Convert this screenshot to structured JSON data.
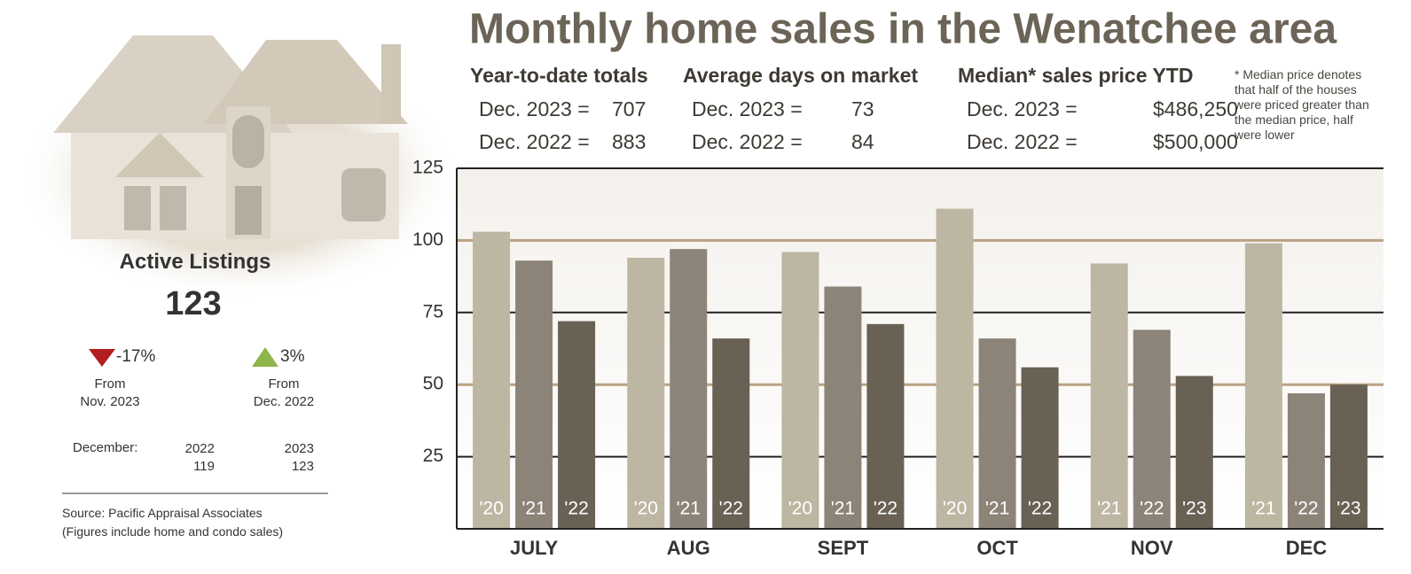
{
  "chart_data": {
    "type": "bar",
    "title": "Monthly home sales in the Wenatchee area",
    "categories": [
      "JULY",
      "AUG",
      "SEPT",
      "OCT",
      "NOV",
      "DEC"
    ],
    "bar_labels": [
      [
        "'20",
        "'21",
        "'22"
      ],
      [
        "'20",
        "'21",
        "'22"
      ],
      [
        "'20",
        "'21",
        "'22"
      ],
      [
        "'20",
        "'21",
        "'22"
      ],
      [
        "'21",
        "'22",
        "'23"
      ],
      [
        "'21",
        "'22",
        "'23"
      ]
    ],
    "values": [
      [
        103,
        93,
        72
      ],
      [
        94,
        97,
        66
      ],
      [
        96,
        84,
        71
      ],
      [
        111,
        66,
        56
      ],
      [
        92,
        69,
        53
      ],
      [
        99,
        47,
        50
      ]
    ],
    "colors": [
      "#bdb6a3",
      "#8d8479",
      "#686154"
    ],
    "ylim": [
      0,
      125
    ],
    "yticks": [
      25,
      50,
      75,
      100,
      125
    ],
    "grid": true
  },
  "stats": [
    {
      "heading": "Year-to-date totals",
      "rows": [
        {
          "label": "Dec. 2023 =",
          "value": "707"
        },
        {
          "label": "Dec. 2022 =",
          "value": "883"
        }
      ]
    },
    {
      "heading": "Average days on market",
      "rows": [
        {
          "label": "Dec. 2023 =",
          "value": "73"
        },
        {
          "label": "Dec. 2022 =",
          "value": "84"
        }
      ]
    },
    {
      "heading": "Median* sales price YTD",
      "rows": [
        {
          "label": "Dec. 2023 =",
          "value": "$486,250"
        },
        {
          "label": "Dec. 2022 =",
          "value": "$500,000"
        }
      ]
    }
  ],
  "footnote": "* Median price denotes that half of the houses were priced greater than the median price, half were lower",
  "listings": {
    "title": "Active Listings",
    "value": "123",
    "changes": [
      {
        "change": "-17%",
        "from": "From",
        "period": "Nov. 2023"
      },
      {
        "change": "3%",
        "from": "From",
        "period": "Dec. 2022"
      }
    ],
    "december": {
      "label": "December:",
      "years": [
        {
          "year": "2022",
          "count": "119"
        },
        {
          "year": "2023",
          "count": "123"
        }
      ]
    },
    "source": [
      "Source: Pacific Appraisal Associates",
      "(Figures include home and condo sales)"
    ]
  }
}
